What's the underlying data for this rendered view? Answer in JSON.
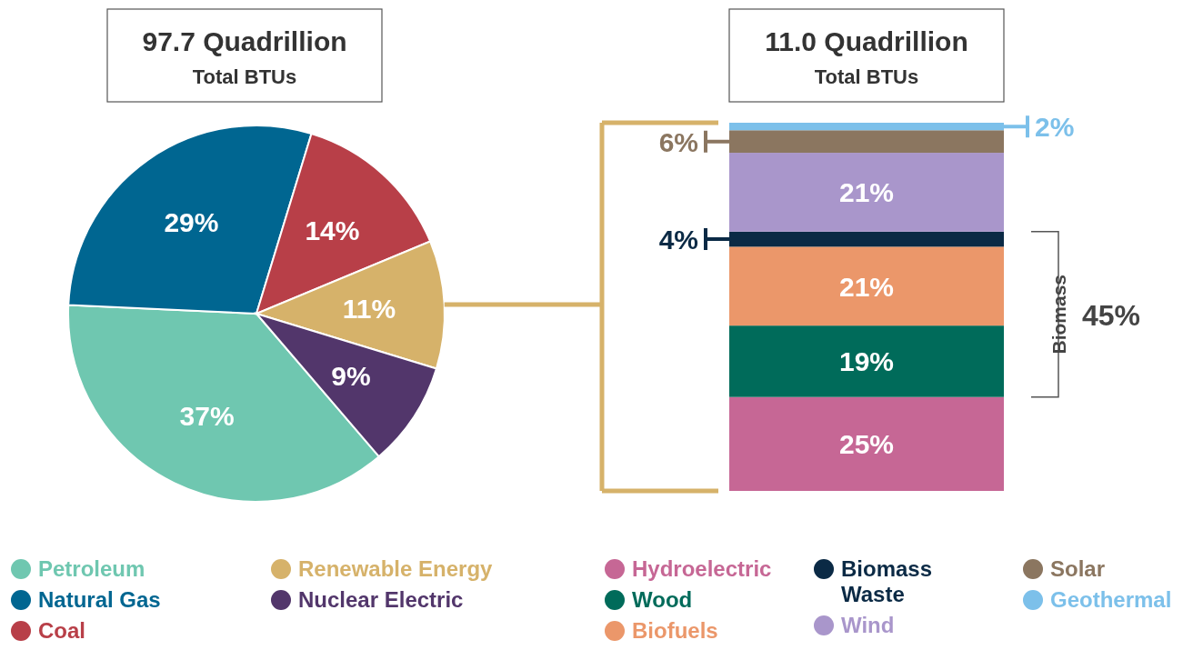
{
  "chart_data": [
    {
      "type": "pie",
      "title": "97.7 Quadrillion",
      "subtitle": "Total BTUs",
      "categories": [
        "Petroleum",
        "Natural Gas",
        "Coal",
        "Renewable Energy",
        "Nuclear Electric"
      ],
      "values": [
        37,
        29,
        14,
        11,
        9
      ],
      "value_labels": [
        "37%",
        "29%",
        "14%",
        "11%",
        "9%"
      ],
      "colors": [
        "#6fc7b0",
        "#006691",
        "#b83f48",
        "#d6b26a",
        "#52366b"
      ],
      "legend": "bottom"
    },
    {
      "type": "bar",
      "title": "11.0 Quadrillion",
      "subtitle": "Total BTUs",
      "stacked": true,
      "categories": [
        null
      ],
      "series": [
        {
          "name": "Hydroelectric",
          "color": "#c66795",
          "values": [
            25
          ],
          "value_labels": [
            "25%"
          ]
        },
        {
          "name": "Wood",
          "color": "#006b5a",
          "values": [
            19
          ],
          "value_labels": [
            "19%"
          ]
        },
        {
          "name": "Biofuels",
          "color": "#eb976a",
          "values": [
            21
          ],
          "value_labels": [
            "21%"
          ]
        },
        {
          "name": "Biomass Waste",
          "color": "#0b2a45",
          "values": [
            4
          ],
          "value_labels": [
            "4%"
          ]
        },
        {
          "name": "Wind",
          "color": "#a996cb",
          "values": [
            21
          ],
          "value_labels": [
            "21%"
          ]
        },
        {
          "name": "Solar",
          "color": "#8b7660",
          "values": [
            6
          ],
          "value_labels": [
            "6%"
          ]
        },
        {
          "name": "Geothermal",
          "color": "#7cc0ea",
          "values": [
            2
          ],
          "value_labels": [
            "2%"
          ]
        }
      ],
      "annotations": [
        "Biomass",
        "45%"
      ],
      "legend": "bottom"
    }
  ]
}
